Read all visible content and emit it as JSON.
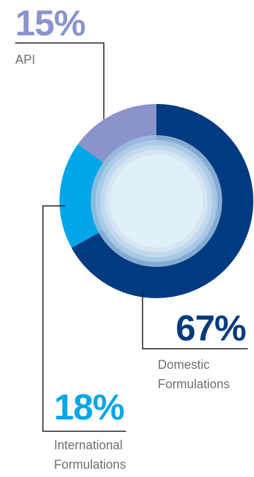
{
  "chart_data": {
    "type": "pie",
    "style": "donut",
    "slices": [
      {
        "key": "domestic",
        "percent_label": "67%",
        "label_line1": "Domestic",
        "label_line2": "Formulations",
        "value": 67,
        "color": "#003a80"
      },
      {
        "key": "intl",
        "percent_label": "18%",
        "label_line1": "International",
        "label_line2": "Formulations",
        "value": 18,
        "color": "#00a6e8"
      },
      {
        "key": "api",
        "percent_label": "15%",
        "label_line1": "API",
        "label_line2": "",
        "value": 15,
        "color": "#8b93cc"
      }
    ],
    "start_angle_deg": 0,
    "direction": "clockwise"
  },
  "colors": {
    "leader_line": "#1a1a1a",
    "label_text": "#6d6f73",
    "inner_rings": [
      "#9cc0e0",
      "#b4d1ea",
      "#c9def0",
      "#d9e9f6",
      "#e6f2fb"
    ]
  }
}
